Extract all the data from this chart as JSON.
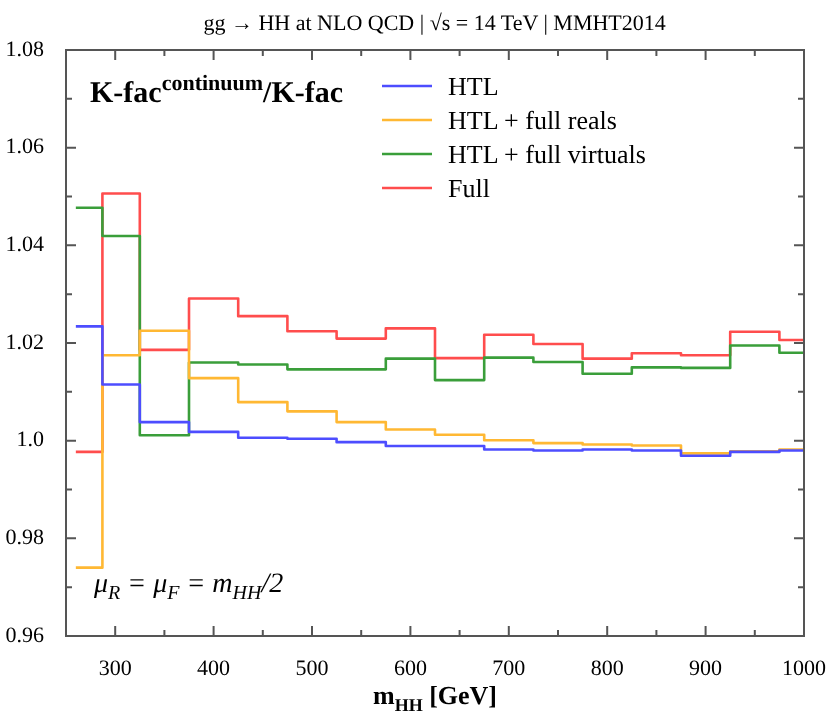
{
  "chart_data": {
    "type": "step",
    "title": "gg → HH at NLO QCD | √s = 14 TeV | MMHT2014",
    "xlabel": "m$_{HH}$ [GeV]",
    "annotations": [
      "K-fac$^{continuum}$/K-fac",
      "μ$_{R}$ = μ$_{F}$ = m$_{HH}$/2"
    ],
    "x": [
      260,
      287,
      325,
      375,
      425,
      475,
      525,
      575,
      625,
      675,
      725,
      775,
      825,
      875,
      925,
      975,
      1000
    ],
    "series": [
      {
        "name": "HTL",
        "color": "#4d4dff",
        "values": [
          1.0234,
          1.0115,
          1.0038,
          1.0018,
          1.0006,
          1.0004,
          0.9997,
          0.9989,
          0.9989,
          0.9982,
          0.998,
          0.9982,
          0.998,
          0.9969,
          0.9977,
          0.998,
          0.998
        ]
      },
      {
        "name": "HTL + full reals",
        "color": "#ffb833",
        "values": [
          0.974,
          1.0175,
          1.0225,
          1.0128,
          1.0079,
          1.006,
          1.0038,
          1.0023,
          1.0012,
          1.0001,
          0.9995,
          0.9992,
          0.999,
          0.9974,
          0.9978,
          0.9982,
          0.9982
        ]
      },
      {
        "name": "HTL + full virtuals",
        "color": "#3a9e3a",
        "values": [
          1.0477,
          1.0419,
          1.0011,
          1.016,
          1.0156,
          1.0146,
          1.0146,
          1.0168,
          1.0124,
          1.017,
          1.0161,
          1.0137,
          1.015,
          1.0149,
          1.0195,
          1.018,
          1.018
        ]
      },
      {
        "name": "Full",
        "color": "#ff4d4d",
        "values": [
          0.9977,
          1.0506,
          1.0186,
          1.0291,
          1.0255,
          1.0224,
          1.0209,
          1.023,
          1.0169,
          1.0217,
          1.0198,
          1.0168,
          1.0179,
          1.0175,
          1.0223,
          1.0206,
          1.0206
        ]
      }
    ],
    "xlim": [
      250,
      1000
    ],
    "xticks": [
      {
        "value": 250,
        "label": null
      },
      300,
      {
        "value": 350,
        "label": null
      },
      400,
      {
        "value": 450,
        "label": null
      },
      500,
      {
        "value": 550,
        "label": null
      },
      600,
      {
        "value": 650,
        "label": null
      },
      700,
      {
        "value": 750,
        "label": null
      },
      800,
      {
        "value": 850,
        "label": null
      },
      900,
      {
        "value": 950,
        "label": null
      },
      1000
    ],
    "ylim": [
      0.96,
      1.08
    ],
    "yticks": [
      0.96,
      {
        "value": 0.97,
        "label": null
      },
      0.98,
      {
        "value": 0.99,
        "label": null
      },
      {
        "value": 1,
        "label": "1.0"
      },
      {
        "value": 1.01,
        "label": null
      },
      1.02,
      {
        "value": 1.03,
        "label": null
      },
      1.04,
      {
        "value": 1.05,
        "label": null
      },
      1.06,
      {
        "value": 1.07,
        "label": null
      },
      1.08
    ],
    "grid": false,
    "legend": "top right",
    "marker": "none",
    "line_style": "solid"
  }
}
